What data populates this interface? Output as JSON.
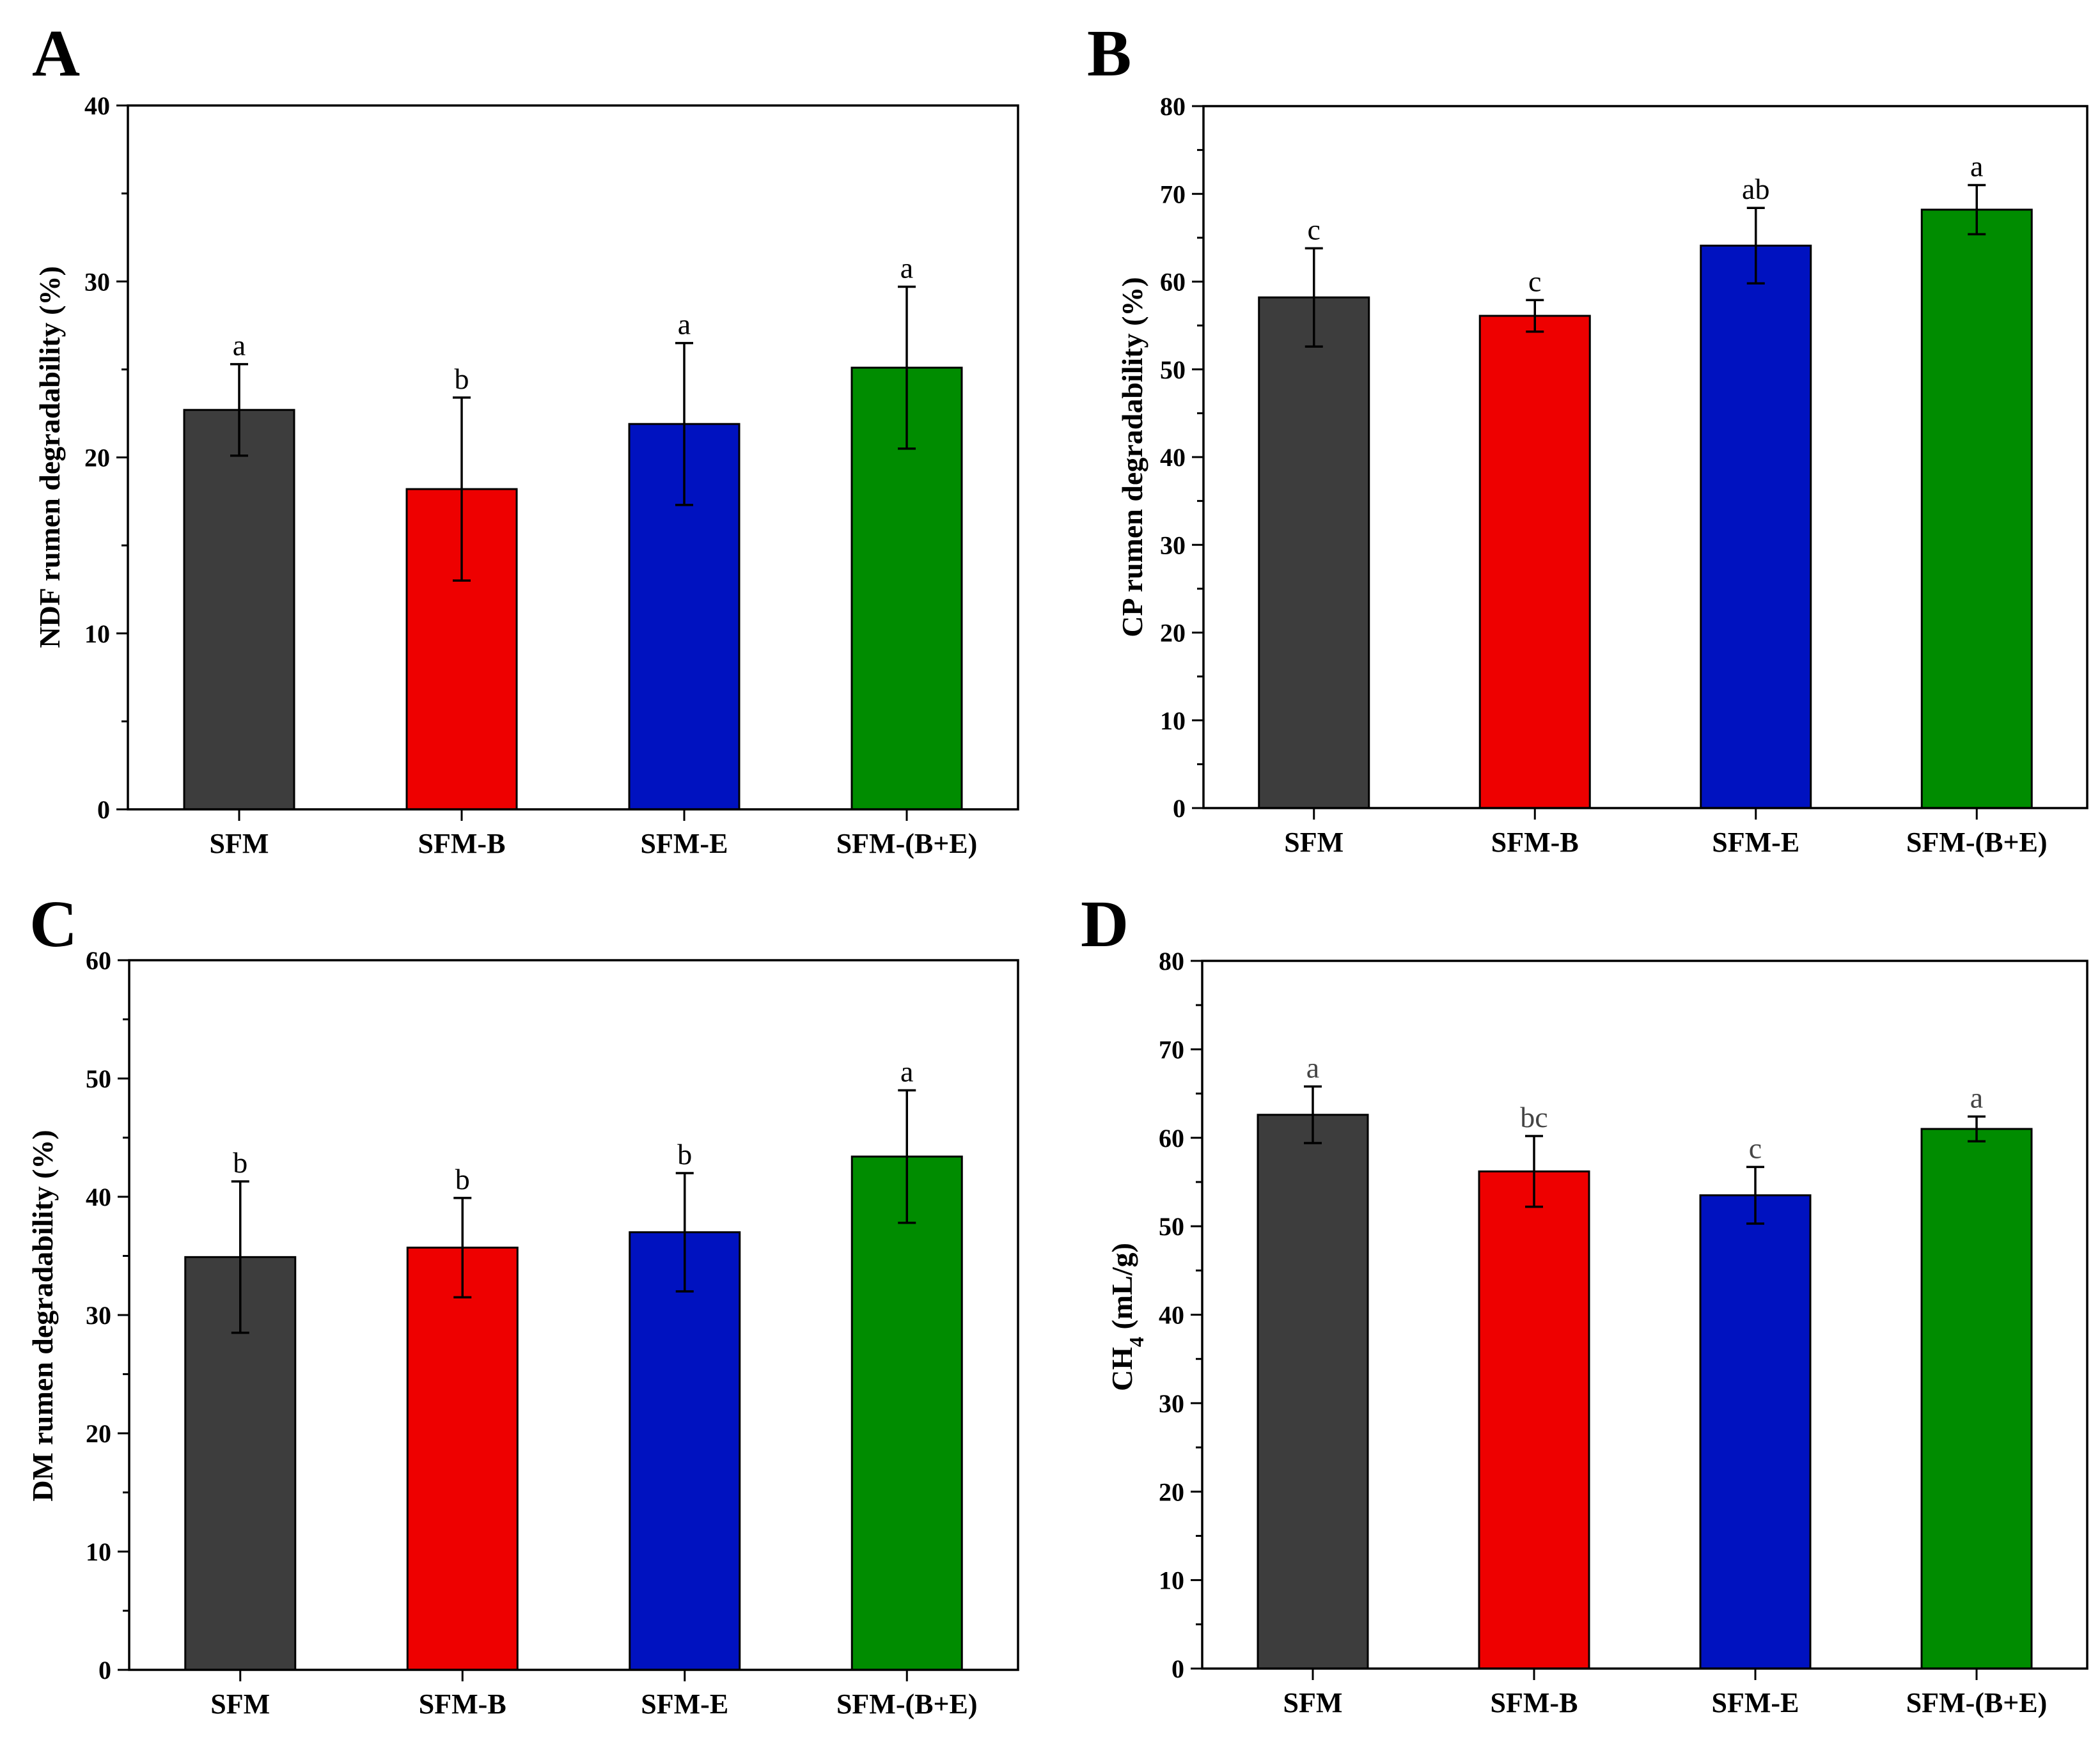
{
  "chart_data": [
    {
      "panel": "A",
      "type": "bar",
      "title": "",
      "xlabel": "",
      "ylabel": "NDF rumen degradability (%)",
      "ylim": [
        0,
        40
      ],
      "yticks": [
        "0",
        "10",
        "20",
        "30",
        "40"
      ],
      "categories": [
        "SFM",
        "SFM-B",
        "SFM-E",
        "SFM-(B+E)"
      ],
      "values": [
        22.7,
        18.2,
        21.9,
        25.1
      ],
      "errors": [
        2.6,
        5.2,
        4.6,
        4.6
      ],
      "significance": [
        "a",
        "b",
        "a",
        "a"
      ],
      "colors": [
        "#3d3d3d",
        "#ee0000",
        "#0012c0",
        "#008c00"
      ]
    },
    {
      "panel": "B",
      "type": "bar",
      "title": "",
      "xlabel": "",
      "ylabel": "CP rumen degradability (%)",
      "ylim": [
        0,
        80
      ],
      "yticks": [
        "0",
        "10",
        "20",
        "30",
        "40",
        "50",
        "60",
        "70",
        "80"
      ],
      "categories": [
        "SFM",
        "SFM-B",
        "SFM-E",
        "SFM-(B+E)"
      ],
      "values": [
        58.2,
        56.1,
        64.1,
        68.2
      ],
      "errors": [
        5.6,
        1.8,
        4.3,
        2.8
      ],
      "significance": [
        "c",
        "c",
        "ab",
        "a"
      ],
      "colors": [
        "#3d3d3d",
        "#ee0000",
        "#0012c0",
        "#008c00"
      ]
    },
    {
      "panel": "C",
      "type": "bar",
      "title": "",
      "xlabel": "",
      "ylabel": "DM rumen degradability (%)",
      "ylim": [
        0,
        60
      ],
      "yticks": [
        "0",
        "10",
        "20",
        "30",
        "40",
        "50",
        "60"
      ],
      "categories": [
        "SFM",
        "SFM-B",
        "SFM-E",
        "SFM-(B+E)"
      ],
      "values": [
        34.9,
        35.7,
        37.0,
        43.4
      ],
      "errors": [
        6.4,
        4.2,
        5.0,
        5.6
      ],
      "significance": [
        "b",
        "b",
        "b",
        "a"
      ],
      "colors": [
        "#3d3d3d",
        "#ee0000",
        "#0012c0",
        "#008c00"
      ]
    },
    {
      "panel": "D",
      "type": "bar",
      "title": "",
      "xlabel": "",
      "ylabel": "CH4 (mL/g)",
      "ylabel_main": "CH",
      "ylabel_sub": "4",
      "ylabel_rest": " (mL/g)",
      "ylim": [
        0,
        80
      ],
      "yticks": [
        "0",
        "10",
        "20",
        "30",
        "40",
        "50",
        "60",
        "70",
        "80"
      ],
      "categories": [
        "SFM",
        "SFM-B",
        "SFM-E",
        "SFM-(B+E)"
      ],
      "values": [
        62.6,
        56.2,
        53.5,
        61.0
      ],
      "errors": [
        3.2,
        4.0,
        3.2,
        1.4
      ],
      "significance": [
        "a",
        "bc",
        "c",
        "a"
      ],
      "colors": [
        "#3d3d3d",
        "#ee0000",
        "#0012c0",
        "#008c00"
      ]
    }
  ]
}
